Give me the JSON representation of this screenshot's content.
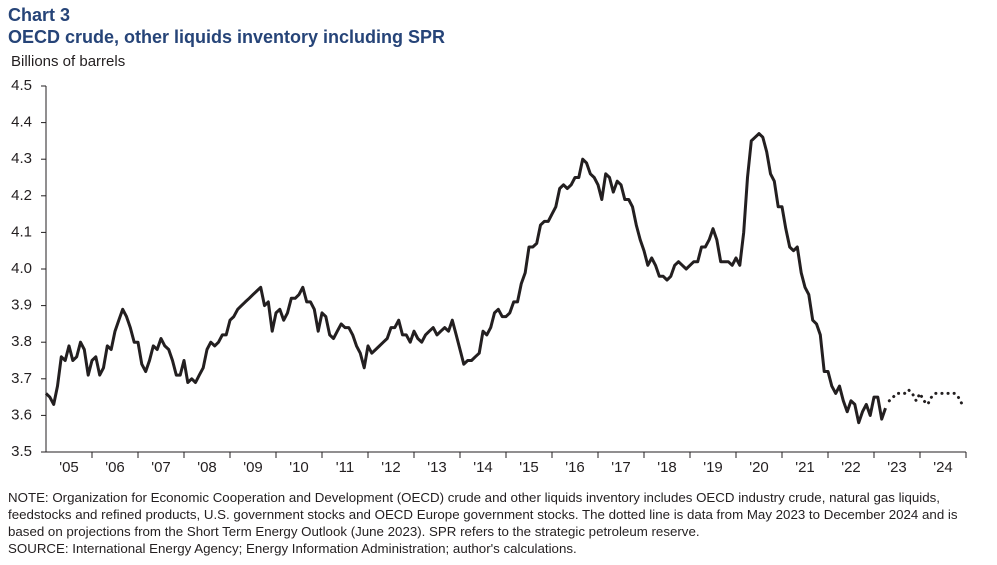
{
  "chart_data": {
    "type": "line",
    "label": "Chart 3",
    "title": "OECD crude, other liquids inventory including SPR",
    "ylabel": "Billions of barrels",
    "note": "NOTE: Organization for Economic Cooperation and Development (OECD) crude and other liquids inventory includes OECD industry crude, natural gas liquids, feedstocks and refined products, U.S. government stocks and OECD Europe government stocks. The dotted line is data from May 2023 to December 2024 and is based on projections from the Short Term Energy Outlook (June 2023). SPR refers to the strategic petroleum reserve.",
    "source": "SOURCE: International  Energy Agency;  Energy Information Administration;  author's calculations.",
    "ylim": [
      3.5,
      4.5
    ],
    "yticks": [
      3.5,
      3.6,
      3.7,
      3.8,
      3.9,
      {
        "value": 4.0,
        "label": "4.0"
      },
      4.1,
      4.2,
      4.3,
      4.4,
      4.5
    ],
    "xlim": [
      2005,
      2025
    ],
    "xticks": [
      {
        "value": 2005.5,
        "label": "'05"
      },
      {
        "value": 2006.5,
        "label": "'06"
      },
      {
        "value": 2007.5,
        "label": "'07"
      },
      {
        "value": 2008.5,
        "label": "'08"
      },
      {
        "value": 2009.5,
        "label": "'09"
      },
      {
        "value": 2010.5,
        "label": "'10"
      },
      {
        "value": 2011.5,
        "label": "'11"
      },
      {
        "value": 2012.5,
        "label": "'12"
      },
      {
        "value": 2013.5,
        "label": "'13"
      },
      {
        "value": 2014.5,
        "label": "'14"
      },
      {
        "value": 2015.5,
        "label": "'15"
      },
      {
        "value": 2016.5,
        "label": "'16"
      },
      {
        "value": 2017.5,
        "label": "'17"
      },
      {
        "value": 2018.5,
        "label": "'18"
      },
      {
        "value": 2019.5,
        "label": "'19"
      },
      {
        "value": 2020.5,
        "label": "'20"
      },
      {
        "value": 2021.5,
        "label": "'21"
      },
      {
        "value": 2022.5,
        "label": "'22"
      },
      {
        "value": 2023.5,
        "label": "'23"
      },
      {
        "value": 2024.5,
        "label": "'24"
      }
    ],
    "series": [
      {
        "color": "#231f20",
        "style": "solid",
        "x": [
          2005.0,
          2005.083,
          2005.167,
          2005.25,
          2005.333,
          2005.417,
          2005.5,
          2005.583,
          2005.667,
          2005.75,
          2005.833,
          2005.917,
          2006.0,
          2006.083,
          2006.167,
          2006.25,
          2006.333,
          2006.417,
          2006.5,
          2006.583,
          2006.667,
          2006.75,
          2006.833,
          2006.917,
          2007.0,
          2007.083,
          2007.167,
          2007.25,
          2007.333,
          2007.417,
          2007.5,
          2007.583,
          2007.667,
          2007.75,
          2007.833,
          2007.917,
          2008.0,
          2008.083,
          2008.167,
          2008.25,
          2008.333,
          2008.417,
          2008.5,
          2008.583,
          2008.667,
          2008.75,
          2008.833,
          2008.917,
          2009.0,
          2009.083,
          2009.167,
          2009.25,
          2009.333,
          2009.417,
          2009.5,
          2009.583,
          2009.667,
          2009.75,
          2009.833,
          2009.917,
          2010.0,
          2010.083,
          2010.167,
          2010.25,
          2010.333,
          2010.417,
          2010.5,
          2010.583,
          2010.667,
          2010.75,
          2010.833,
          2010.917,
          2011.0,
          2011.083,
          2011.167,
          2011.25,
          2011.333,
          2011.417,
          2011.5,
          2011.583,
          2011.667,
          2011.75,
          2011.833,
          2011.917,
          2012.0,
          2012.083,
          2012.167,
          2012.25,
          2012.333,
          2012.417,
          2012.5,
          2012.583,
          2012.667,
          2012.75,
          2012.833,
          2012.917,
          2013.0,
          2013.083,
          2013.167,
          2013.25,
          2013.333,
          2013.417,
          2013.5,
          2013.583,
          2013.667,
          2013.75,
          2013.833,
          2013.917,
          2014.0,
          2014.083,
          2014.167,
          2014.25,
          2014.333,
          2014.417,
          2014.5,
          2014.583,
          2014.667,
          2014.75,
          2014.833,
          2014.917,
          2015.0,
          2015.083,
          2015.167,
          2015.25,
          2015.333,
          2015.417,
          2015.5,
          2015.583,
          2015.667,
          2015.75,
          2015.833,
          2015.917,
          2016.0,
          2016.083,
          2016.167,
          2016.25,
          2016.333,
          2016.417,
          2016.5,
          2016.583,
          2016.667,
          2016.75,
          2016.833,
          2016.917,
          2017.0,
          2017.083,
          2017.167,
          2017.25,
          2017.333,
          2017.417,
          2017.5,
          2017.583,
          2017.667,
          2017.75,
          2017.833,
          2017.917,
          2018.0,
          2018.083,
          2018.167,
          2018.25,
          2018.333,
          2018.417,
          2018.5,
          2018.583,
          2018.667,
          2018.75,
          2018.833,
          2018.917,
          2019.0,
          2019.083,
          2019.167,
          2019.25,
          2019.333,
          2019.417,
          2019.5,
          2019.583,
          2019.667,
          2019.75,
          2019.833,
          2019.917,
          2020.0,
          2020.083,
          2020.167,
          2020.25,
          2020.333,
          2020.417,
          2020.5,
          2020.583,
          2020.667,
          2020.75,
          2020.833,
          2020.917,
          2021.0,
          2021.083,
          2021.167,
          2021.25,
          2021.333,
          2021.417,
          2021.5,
          2021.583,
          2021.667,
          2021.75,
          2021.833,
          2021.917,
          2022.0,
          2022.083,
          2022.167,
          2022.25,
          2022.333,
          2022.417,
          2022.5,
          2022.583,
          2022.667,
          2022.75,
          2022.833,
          2022.917,
          2023.0,
          2023.083,
          2023.167,
          2023.25
        ],
        "values": [
          3.66,
          3.65,
          3.63,
          3.68,
          3.76,
          3.75,
          3.79,
          3.75,
          3.76,
          3.8,
          3.78,
          3.71,
          3.75,
          3.76,
          3.71,
          3.73,
          3.79,
          3.78,
          3.83,
          3.86,
          3.89,
          3.87,
          3.84,
          3.8,
          3.8,
          3.74,
          3.72,
          3.75,
          3.79,
          3.78,
          3.81,
          3.79,
          3.78,
          3.75,
          3.71,
          3.71,
          3.75,
          3.69,
          3.7,
          3.69,
          3.71,
          3.73,
          3.78,
          3.8,
          3.79,
          3.8,
          3.82,
          3.82,
          3.86,
          3.87,
          3.89,
          3.9,
          3.91,
          3.92,
          3.93,
          3.94,
          3.95,
          3.9,
          3.91,
          3.83,
          3.88,
          3.89,
          3.86,
          3.88,
          3.92,
          3.92,
          3.93,
          3.95,
          3.91,
          3.91,
          3.89,
          3.83,
          3.88,
          3.87,
          3.82,
          3.81,
          3.83,
          3.85,
          3.84,
          3.84,
          3.82,
          3.79,
          3.77,
          3.73,
          3.79,
          3.77,
          3.78,
          3.79,
          3.8,
          3.81,
          3.84,
          3.84,
          3.86,
          3.82,
          3.82,
          3.8,
          3.83,
          3.81,
          3.8,
          3.82,
          3.83,
          3.84,
          3.82,
          3.83,
          3.84,
          3.83,
          3.86,
          3.82,
          3.78,
          3.74,
          3.75,
          3.75,
          3.76,
          3.77,
          3.83,
          3.82,
          3.84,
          3.88,
          3.89,
          3.87,
          3.87,
          3.88,
          3.91,
          3.91,
          3.96,
          3.99,
          4.06,
          4.06,
          4.07,
          4.12,
          4.13,
          4.13,
          4.15,
          4.17,
          4.22,
          4.23,
          4.22,
          4.23,
          4.25,
          4.25,
          4.3,
          4.29,
          4.26,
          4.25,
          4.23,
          4.19,
          4.26,
          4.25,
          4.21,
          4.24,
          4.23,
          4.19,
          4.19,
          4.17,
          4.12,
          4.08,
          4.05,
          4.01,
          4.03,
          4.01,
          3.98,
          3.98,
          3.97,
          3.98,
          4.01,
          4.02,
          4.01,
          4.0,
          4.01,
          4.02,
          4.02,
          4.06,
          4.06,
          4.08,
          4.11,
          4.08,
          4.02,
          4.02,
          4.02,
          4.01,
          4.03,
          4.01,
          4.1,
          4.25,
          4.35,
          4.36,
          4.37,
          4.36,
          4.32,
          4.26,
          4.24,
          4.17,
          4.17,
          4.11,
          4.06,
          4.05,
          4.06,
          3.99,
          3.95,
          3.93,
          3.86,
          3.85,
          3.82,
          3.72,
          3.72,
          3.68,
          3.66,
          3.68,
          3.64,
          3.61,
          3.64,
          3.63,
          3.58,
          3.61,
          3.63,
          3.6,
          3.65,
          3.65,
          3.59,
          3.62
        ]
      },
      {
        "color": "#231f20",
        "style": "dotted",
        "x": [
          2023.333,
          2023.417,
          2023.5,
          2023.583,
          2023.667,
          2023.75,
          2023.833,
          2023.917,
          2024.0,
          2024.083,
          2024.167,
          2024.25,
          2024.333,
          2024.417,
          2024.5,
          2024.583,
          2024.667,
          2024.75,
          2024.833,
          2024.917
        ],
        "values": [
          3.64,
          3.65,
          3.66,
          3.66,
          3.66,
          3.67,
          3.66,
          3.64,
          3.66,
          3.64,
          3.63,
          3.65,
          3.66,
          3.66,
          3.66,
          3.66,
          3.66,
          3.66,
          3.65,
          3.63
        ]
      }
    ]
  }
}
